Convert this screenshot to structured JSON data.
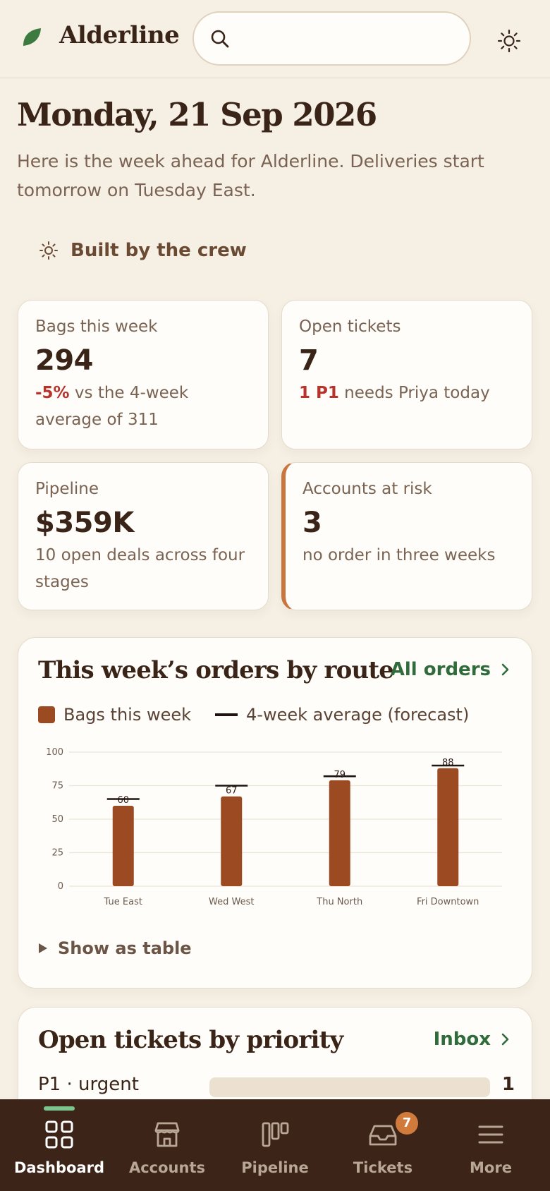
{
  "header": {
    "brand": "Alderline",
    "search": {
      "value": "",
      "placeholder": ""
    },
    "logo_icon": "leaf-icon",
    "theme_icon": "sun-icon",
    "colors": {
      "leaf": "#3c7a3f"
    }
  },
  "intro": {
    "date": "Monday, 21 Sep 2026",
    "subtitle": "Here is the week ahead for Alderline. Deliveries start tomorrow on Tuesday East.",
    "crew_label": "Built by the crew"
  },
  "kpis": [
    {
      "label": "Bags this week",
      "value": "294",
      "highlight": "-5%",
      "note": " vs the 4-week average of 311"
    },
    {
      "label": "Open tickets",
      "value": "7",
      "highlight": "1 P1",
      "note": " needs Priya today"
    },
    {
      "label": "Pipeline",
      "value": "$359K",
      "highlight": "",
      "note": "10 open deals across four stages"
    },
    {
      "label": "Accounts at risk",
      "value": "3",
      "highlight": "",
      "note": "no order in three weeks"
    }
  ],
  "orders_panel": {
    "title": "This week’s orders by route",
    "link": "All orders",
    "show_table": "Show as table"
  },
  "chart_data": {
    "type": "bar",
    "categories": [
      "Tue East",
      "Wed West",
      "Thu North",
      "Fri Downtown"
    ],
    "series": [
      {
        "name": "Bags this week",
        "values": [
          60,
          67,
          79,
          88
        ],
        "color": "#9c4a22"
      },
      {
        "name": "4-week average (forecast)",
        "values": [
          65,
          75,
          82,
          90
        ],
        "color": "#1f1410"
      }
    ],
    "data_labels": [
      "60",
      "67",
      "79",
      "88"
    ],
    "yticks": [
      "100",
      "75",
      "50",
      "25",
      "0"
    ],
    "ylim": [
      0,
      100
    ],
    "grid": true,
    "legend": "top-left"
  },
  "tickets_panel": {
    "title": "Open tickets by priority",
    "link": "Inbox",
    "rows": [
      {
        "label": "P1 · urgent",
        "count": "1"
      }
    ]
  },
  "nav": {
    "items": [
      {
        "label": "Dashboard",
        "icon": "grid-icon"
      },
      {
        "label": "Accounts",
        "icon": "store-icon"
      },
      {
        "label": "Pipeline",
        "icon": "kanban-icon"
      },
      {
        "label": "Tickets",
        "icon": "inbox-icon",
        "badge": "7"
      },
      {
        "label": "More",
        "icon": "menu-icon"
      }
    ],
    "active": "Dashboard"
  }
}
